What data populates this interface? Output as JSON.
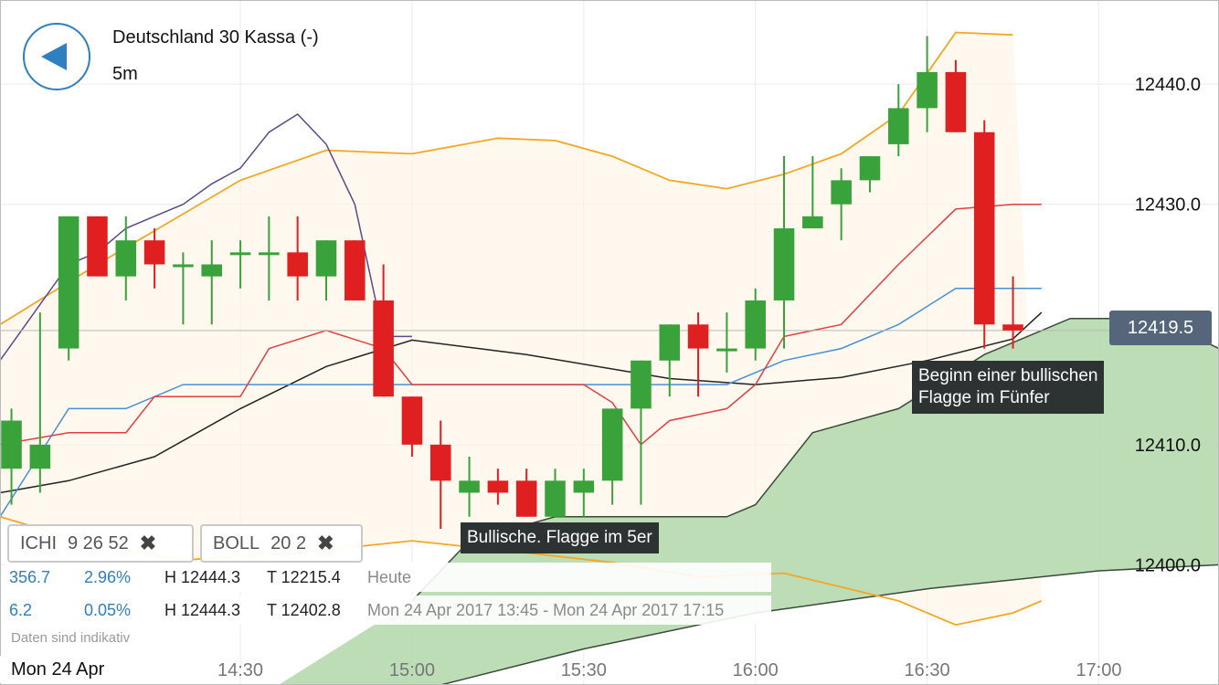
{
  "header": {
    "title": "Deutschland 30 Kassa (-)",
    "interval": "5m"
  },
  "indicators": [
    {
      "name": "ICHI",
      "params": "9  26  52",
      "remove": "✖"
    },
    {
      "name": "BOLL",
      "params": "20  2",
      "remove": "✖"
    }
  ],
  "stats": {
    "row1": {
      "change": "356.7",
      "percent": "2.96%",
      "high": "H 12444.3",
      "low": "T 12215.4",
      "period": "Heute"
    },
    "row2": {
      "change": "6.2",
      "percent": "0.05%",
      "high": "H 12444.3",
      "low": "T 12402.8",
      "period": "Mon 24 Apr 2017 13:45 - Mon 24 Apr 2017 17:15"
    }
  },
  "note": "Daten sind indikativ",
  "annotations": [
    {
      "text1": "Bullische. Flagge im 5er"
    },
    {
      "text1": "Beginn einer bullischen",
      "text2": "Flagge im Fünfer"
    }
  ],
  "current_price": "12419.5",
  "date_label": "Mon 24 Apr",
  "colors": {
    "up": "#39a23b",
    "down": "#e02020",
    "boll": "#f5a623",
    "cloud": "#b8dbb2",
    "ichi_kijun": "#e04040",
    "ichi_tenkan": "#4a8fd4",
    "ichi_chikou": "#5a4a86",
    "ichi_black": "#222222",
    "accent": "#2f7fc1",
    "price_tag": "#55667a"
  },
  "chart_data": {
    "type": "candlestick",
    "y_ticks": [
      "12440.0",
      "12430.0",
      "12410.0",
      "12400.0"
    ],
    "x_ticks": [
      "14:30",
      "15:00",
      "15:30",
      "16:00",
      "16:30",
      "17:00"
    ],
    "x_tick_times": [
      870,
      900,
      930,
      960,
      990,
      1020
    ],
    "ylim": [
      12390,
      12447
    ],
    "xlim": [
      828,
      1041
    ],
    "current_price": 12419.5,
    "candles": [
      {
        "t": 830,
        "o": 12408,
        "h": 12413,
        "l": 12405,
        "c": 12412
      },
      {
        "t": 835,
        "o": 12408,
        "h": 12421,
        "l": 12406,
        "c": 12410
      },
      {
        "t": 840,
        "o": 12418,
        "h": 12429,
        "l": 12417,
        "c": 12429
      },
      {
        "t": 845,
        "o": 12429,
        "h": 12429,
        "l": 12424,
        "c": 12424
      },
      {
        "t": 850,
        "o": 12424,
        "h": 12429,
        "l": 12422,
        "c": 12427
      },
      {
        "t": 855,
        "o": 12427,
        "h": 12428,
        "l": 12423,
        "c": 12425
      },
      {
        "t": 860,
        "o": 12425,
        "h": 12426,
        "l": 12420,
        "c": 12425
      },
      {
        "t": 865,
        "o": 12424,
        "h": 12427,
        "l": 12420,
        "c": 12425
      },
      {
        "t": 870,
        "o": 12426,
        "h": 12427,
        "l": 12423,
        "c": 12426
      },
      {
        "t": 875,
        "o": 12426,
        "h": 12429,
        "l": 12422,
        "c": 12426
      },
      {
        "t": 880,
        "o": 12426,
        "h": 12429,
        "l": 12422,
        "c": 12424
      },
      {
        "t": 885,
        "o": 12424,
        "h": 12427,
        "l": 12422,
        "c": 12427
      },
      {
        "t": 890,
        "o": 12427,
        "h": 12427,
        "l": 12422,
        "c": 12422
      },
      {
        "t": 895,
        "o": 12422,
        "h": 12425,
        "l": 12414,
        "c": 12414
      },
      {
        "t": 900,
        "o": 12414,
        "h": 12414,
        "l": 12409,
        "c": 12410
      },
      {
        "t": 905,
        "o": 12410,
        "h": 12412,
        "l": 12403,
        "c": 12407
      },
      {
        "t": 910,
        "o": 12406,
        "h": 12409,
        "l": 12404,
        "c": 12407
      },
      {
        "t": 915,
        "o": 12407,
        "h": 12408,
        "l": 12405,
        "c": 12406
      },
      {
        "t": 920,
        "o": 12407,
        "h": 12408,
        "l": 12404,
        "c": 12404
      },
      {
        "t": 925,
        "o": 12404,
        "h": 12408,
        "l": 12404,
        "c": 12407
      },
      {
        "t": 930,
        "o": 12406,
        "h": 12408,
        "l": 12404,
        "c": 12407
      },
      {
        "t": 935,
        "o": 12407,
        "h": 12413,
        "l": 12405,
        "c": 12413
      },
      {
        "t": 940,
        "o": 12413,
        "h": 12417,
        "l": 12405,
        "c": 12417
      },
      {
        "t": 945,
        "o": 12417,
        "h": 12420,
        "l": 12414,
        "c": 12420
      },
      {
        "t": 950,
        "o": 12420,
        "h": 12421,
        "l": 12414,
        "c": 12418
      },
      {
        "t": 955,
        "o": 12418,
        "h": 12421,
        "l": 12416,
        "c": 12418
      },
      {
        "t": 960,
        "o": 12418,
        "h": 12423,
        "l": 12417,
        "c": 12422
      },
      {
        "t": 965,
        "o": 12422,
        "h": 12434,
        "l": 12418,
        "c": 12428
      },
      {
        "t": 970,
        "o": 12428,
        "h": 12434,
        "l": 12428,
        "c": 12429
      },
      {
        "t": 975,
        "o": 12430,
        "h": 12433,
        "l": 12427,
        "c": 12432
      },
      {
        "t": 980,
        "o": 12432,
        "h": 12434,
        "l": 12431,
        "c": 12434
      },
      {
        "t": 985,
        "o": 12435,
        "h": 12440,
        "l": 12434,
        "c": 12438
      },
      {
        "t": 990,
        "o": 12438,
        "h": 12444,
        "l": 12436,
        "c": 12441
      },
      {
        "t": 995,
        "o": 12441,
        "h": 12442,
        "l": 12436,
        "c": 12436
      },
      {
        "t": 1000,
        "o": 12436,
        "h": 12437,
        "l": 12418,
        "c": 12420
      },
      {
        "t": 1005,
        "o": 12420,
        "h": 12424,
        "l": 12418,
        "c": 12419.5
      }
    ],
    "bollinger": {
      "upper": [
        [
          828,
          12420
        ],
        [
          845,
          12425
        ],
        [
          870,
          12432
        ],
        [
          885,
          12434.5
        ],
        [
          900,
          12434.2
        ],
        [
          915,
          12435.5
        ],
        [
          925,
          12435.3
        ],
        [
          935,
          12434
        ],
        [
          945,
          12432
        ],
        [
          955,
          12431.3
        ],
        [
          965,
          12432.5
        ],
        [
          975,
          12434.2
        ],
        [
          985,
          12437.5
        ],
        [
          995,
          12444.3
        ],
        [
          1005,
          12444.1
        ]
      ],
      "middle": [
        [
          828,
          12422
        ],
        [
          845,
          12418.5
        ],
        [
          860,
          12418.2
        ],
        [
          870,
          12419.2
        ],
        [
          885,
          12419.3
        ],
        [
          900,
          12419.2
        ],
        [
          920,
          12419.2
        ],
        [
          930,
          12418
        ],
        [
          940,
          12414
        ],
        [
          955,
          12415
        ],
        [
          965,
          12415.5
        ],
        [
          975,
          12417
        ],
        [
          985,
          12418
        ],
        [
          995,
          12421
        ],
        [
          1005,
          12421.2
        ]
      ],
      "lower": [
        [
          828,
          12404
        ],
        [
          845,
          12401.6
        ],
        [
          860,
          12400.4
        ],
        [
          880,
          12401
        ],
        [
          900,
          12402
        ],
        [
          920,
          12401
        ],
        [
          935,
          12400.2
        ],
        [
          950,
          12399
        ],
        [
          965,
          12399.3
        ],
        [
          985,
          12397
        ],
        [
          995,
          12395
        ],
        [
          1005,
          12396
        ],
        [
          1010,
          12397
        ]
      ]
    },
    "ichimoku": {
      "kijun": [
        [
          828,
          12410
        ],
        [
          840,
          12411
        ],
        [
          850,
          12411
        ],
        [
          855,
          12414
        ],
        [
          870,
          12414
        ],
        [
          875,
          12418
        ],
        [
          885,
          12419.5
        ],
        [
          895,
          12418
        ],
        [
          900,
          12415
        ],
        [
          930,
          12415
        ],
        [
          935,
          12413.5
        ],
        [
          940,
          12410
        ],
        [
          945,
          12412
        ],
        [
          955,
          12413
        ],
        [
          960,
          12415
        ],
        [
          965,
          12419
        ],
        [
          975,
          12420
        ],
        [
          985,
          12425
        ],
        [
          995,
          12429.6
        ],
        [
          1005,
          12430
        ],
        [
          1010,
          12430
        ]
      ],
      "tenkan": [
        [
          828,
          12404
        ],
        [
          840,
          12413
        ],
        [
          850,
          12413
        ],
        [
          860,
          12415
        ],
        [
          870,
          12415
        ],
        [
          900,
          12415
        ],
        [
          945,
          12415
        ],
        [
          955,
          12415
        ],
        [
          960,
          12416
        ],
        [
          965,
          12417
        ],
        [
          975,
          12418
        ],
        [
          985,
          12420
        ],
        [
          995,
          12423
        ],
        [
          1010,
          12423
        ]
      ],
      "chikou": [
        [
          828,
          12417
        ],
        [
          840,
          12425
        ],
        [
          845,
          12426
        ],
        [
          850,
          12428
        ],
        [
          855,
          12429
        ],
        [
          860,
          12430
        ],
        [
          865,
          12431.7
        ],
        [
          870,
          12433
        ],
        [
          875,
          12436
        ],
        [
          880,
          12437.5
        ],
        [
          885,
          12435
        ],
        [
          890,
          12430
        ],
        [
          895,
          12419
        ],
        [
          900,
          12419
        ]
      ],
      "black": [
        [
          828,
          12406
        ],
        [
          840,
          12407
        ],
        [
          855,
          12409
        ],
        [
          870,
          12413
        ],
        [
          885,
          12416.5
        ],
        [
          900,
          12418.7
        ],
        [
          920,
          12417.5
        ],
        [
          945,
          12415.5
        ],
        [
          960,
          12415
        ],
        [
          975,
          12415.6
        ],
        [
          990,
          12417
        ],
        [
          1005,
          12418.8
        ],
        [
          1010,
          12421
        ]
      ],
      "cloud_a": [
        [
          900,
          12397
        ],
        [
          910,
          12402
        ],
        [
          925,
          12404
        ],
        [
          955,
          12404
        ],
        [
          960,
          12405
        ],
        [
          965,
          12408
        ],
        [
          970,
          12411
        ],
        [
          985,
          12413
        ],
        [
          1000,
          12417.5
        ],
        [
          1015,
          12420.5
        ],
        [
          1030,
          12420.5
        ],
        [
          1041,
          12418
        ]
      ],
      "cloud_b": [
        [
          870,
          12388
        ],
        [
          880,
          12389
        ],
        [
          905,
          12390
        ],
        [
          930,
          12393
        ],
        [
          960,
          12396
        ],
        [
          990,
          12398
        ],
        [
          1020,
          12399.5
        ],
        [
          1041,
          12400
        ]
      ]
    }
  }
}
